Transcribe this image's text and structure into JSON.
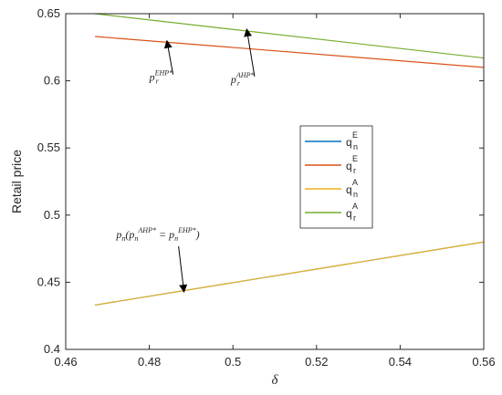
{
  "chart_data": {
    "type": "line",
    "title": "",
    "xlabel": "δ",
    "ylabel": "Retail price",
    "xlim": [
      0.46,
      0.56
    ],
    "ylim": [
      0.4,
      0.65
    ],
    "xticks": [
      "0.46",
      "0.48",
      "0.5",
      "0.52",
      "0.54",
      "0.56"
    ],
    "yticks": [
      "0.4",
      "0.45",
      "0.5",
      "0.55",
      "0.6",
      "0.65"
    ],
    "grid": false,
    "legend_position": "right-middle",
    "series": [
      {
        "name": "q_n^E",
        "base": "q",
        "sub": "n",
        "sup": "E",
        "color": "#0072BD",
        "x": [
          0.467,
          0.56
        ],
        "y": [
          0.433,
          0.48
        ]
      },
      {
        "name": "q_r^E",
        "base": "q",
        "sub": "r",
        "sup": "E",
        "color": "#D95319",
        "x": [
          0.467,
          0.56
        ],
        "y": [
          0.633,
          0.61
        ]
      },
      {
        "name": "q_n^A",
        "base": "q",
        "sub": "n",
        "sup": "A",
        "color": "#EDB120",
        "x": [
          0.467,
          0.56
        ],
        "y": [
          0.433,
          0.48
        ]
      },
      {
        "name": "q_r^A",
        "base": "q",
        "sub": "r",
        "sup": "A",
        "color": "#77AC30",
        "x": [
          0.467,
          0.56
        ],
        "y": [
          0.65,
          0.617
        ]
      }
    ],
    "annotations": [
      {
        "base": "p",
        "sub": "r",
        "sup": "EHP*",
        "text_at": [
          0.48,
          0.6
        ],
        "arrow_to": [
          0.4842,
          0.6299
        ]
      },
      {
        "base": "p",
        "sub": "r",
        "sup": "AHP*",
        "text_at": [
          0.4995,
          0.5985
        ],
        "arrow_to": [
          0.5033,
          0.6385
        ]
      },
      {
        "main": "p",
        "main_sub": "n",
        "open": "(",
        "p1": "p",
        "p1_sub": "n",
        "p1_sup": "AHP*",
        "eq": " = ",
        "p2": "p",
        "p2_sub": "n",
        "p2_sup": "EHP*",
        "close": ")",
        "text_at": [
          0.4721,
          0.4829
        ],
        "arrow_to": [
          0.4883,
          0.4427
        ]
      }
    ]
  }
}
